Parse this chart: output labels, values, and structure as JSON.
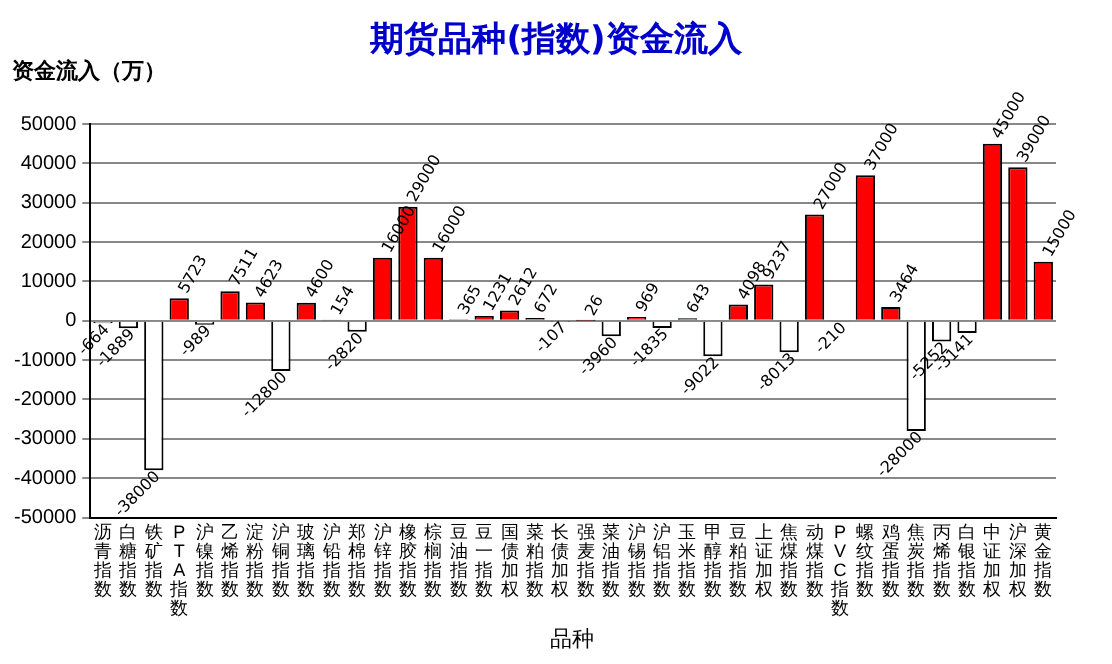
{
  "chart_data": {
    "type": "bar",
    "title": "期货品种(指数)资金流入",
    "ylabel": "资金流入（万）",
    "xlabel": "品种",
    "categories": [
      "沥青指数",
      "白糖指数",
      "铁矿指数",
      "PTA指数",
      "沪镍指数",
      "乙烯指数",
      "淀粉指数",
      "沪铜指数",
      "玻璃指数",
      "沪铅指数",
      "郑棉指数",
      "沪锌指数",
      "橡胶指数",
      "棕榈指数",
      "豆油指数",
      "豆一指数",
      "国债加权",
      "菜粕指数",
      "长债加权",
      "强麦指数",
      "菜油指数",
      "沪锡指数",
      "沪铝指数",
      "玉米指数",
      "甲醇指数",
      "豆粕指数",
      "上证加权",
      "焦煤指数",
      "动煤指数",
      "PVC指数",
      "螺纹指数",
      "鸡蛋指数",
      "焦炭指数",
      "丙烯指数",
      "白银指数",
      "中证加权",
      "沪深加权",
      "黄金指数"
    ],
    "values": [
      -664,
      -1889,
      -38000,
      5723,
      -989,
      7511,
      4623,
      -12800,
      4600,
      154,
      -2820,
      16000,
      29000,
      16000,
      365,
      1231,
      2612,
      672,
      -107,
      26,
      -3960,
      969,
      -1835,
      643,
      -9022,
      4098,
      9237,
      -8013,
      27000,
      -210,
      37000,
      3464,
      -28000,
      -5252,
      -3141,
      45000,
      39000,
      15000
    ],
    "colors": [
      "#ffffff",
      "#ffffff",
      "#ffffff",
      "#ff0000",
      "#ffffff",
      "#ff0000",
      "#ff0000",
      "#ffffff",
      "#ff0000",
      "#ff0000",
      "#ffffff",
      "#ff0000",
      "#ff0000",
      "#ff0000",
      "#ff0000",
      "#ff0000",
      "#ff0000",
      "#ff0000",
      "#ffffff",
      "#ff0000",
      "#ffffff",
      "#ff0000",
      "#ffffff",
      "#ff0000",
      "#ffffff",
      "#ff0000",
      "#ff0000",
      "#ffffff",
      "#ff0000",
      "#ffffff",
      "#ff0000",
      "#ff0000",
      "#ffffff",
      "#ffffff",
      "#ffffff",
      "#ff0000",
      "#ff0000",
      "#ff0000"
    ],
    "ylim": [
      -50000,
      50000
    ],
    "yticks": [
      -50000,
      -40000,
      -30000,
      -20000,
      -10000,
      0,
      10000,
      20000,
      30000,
      40000,
      50000
    ],
    "grid": "y",
    "legend": false,
    "data_labels": true
  }
}
